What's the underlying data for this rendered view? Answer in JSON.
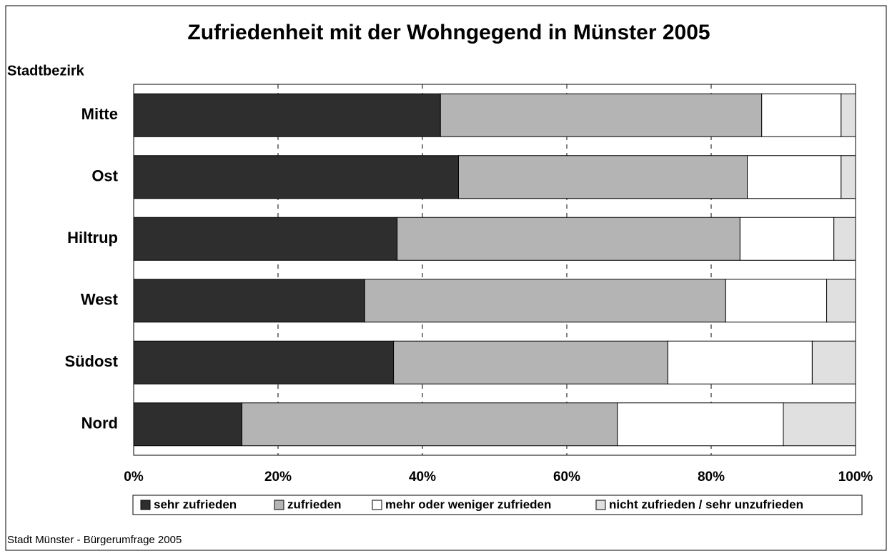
{
  "chart_data": {
    "type": "bar",
    "orientation": "horizontal",
    "stacked": true,
    "title": "Zufriedenheit mit der Wohngegend in Münster 2005",
    "y_label": "Stadtbezirk",
    "source": "Stadt Münster - Bürgerumfrage 2005",
    "categories": [
      "Mitte",
      "Ost",
      "Hiltrup",
      "West",
      "Südost",
      "Nord"
    ],
    "series": [
      {
        "name": "sehr zufrieden",
        "color": "#2e2e2e",
        "values": [
          42.5,
          45,
          36.5,
          32,
          36,
          15
        ]
      },
      {
        "name": "zufrieden",
        "color": "#b4b4b4",
        "values": [
          44.5,
          40,
          47.5,
          50,
          38,
          52
        ]
      },
      {
        "name": "mehr oder weniger zufrieden",
        "color": "#ffffff",
        "values": [
          11,
          13,
          13,
          14,
          20,
          23
        ]
      },
      {
        "name": "nicht zufrieden / sehr unzufrieden",
        "color": "#e0e0e0",
        "values": [
          2,
          2,
          3,
          4,
          6,
          10
        ]
      }
    ],
    "xlim": [
      0,
      100
    ],
    "xticks": [
      {
        "value": 0,
        "label": "0%"
      },
      {
        "value": 20,
        "label": "20%"
      },
      {
        "value": 40,
        "label": "40%"
      },
      {
        "value": 60,
        "label": "60%"
      },
      {
        "value": 80,
        "label": "80%"
      },
      {
        "value": 100,
        "label": "100%"
      }
    ],
    "grid": true,
    "legend": "bottom"
  }
}
